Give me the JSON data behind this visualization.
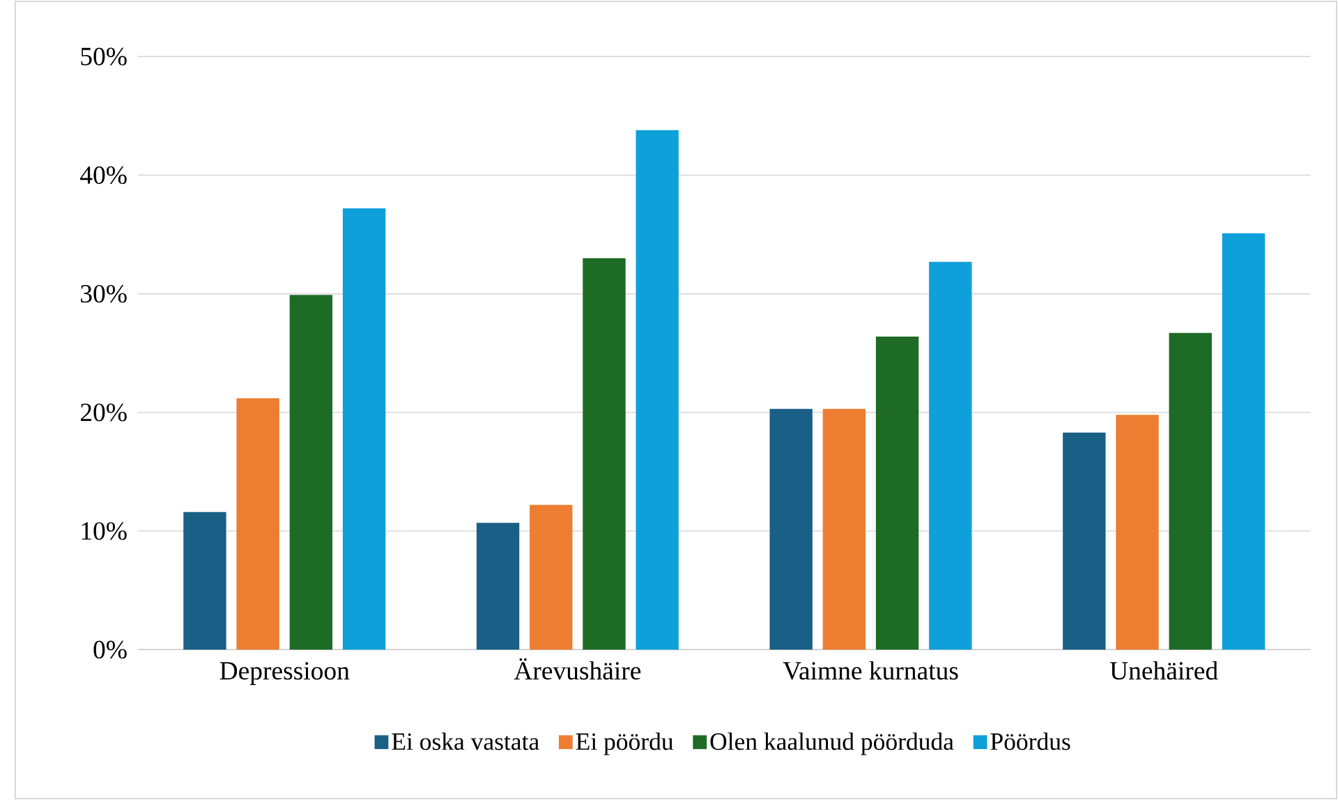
{
  "chart_data": {
    "type": "bar",
    "categories": [
      "Depressioon",
      "Ärevushäire",
      "Vaimne kurnatus",
      "Unehäired"
    ],
    "series": [
      {
        "name": "Ei oska vastata",
        "color": "#1a5f85",
        "values": [
          11.6,
          10.7,
          20.3,
          18.3
        ]
      },
      {
        "name": "Ei pöördu",
        "color": "#ed7d31",
        "values": [
          21.2,
          12.2,
          20.3,
          19.8
        ]
      },
      {
        "name": "Olen kaalunud pöörduda",
        "color": "#1e6b25",
        "values": [
          29.9,
          33.0,
          26.4,
          26.7
        ]
      },
      {
        "name": "Pöördus",
        "color": "#0ea0d8",
        "values": [
          37.2,
          43.8,
          32.7,
          35.1
        ]
      }
    ],
    "ylim": [
      0,
      50
    ],
    "yticks": [
      {
        "value": 0,
        "label": "0%"
      },
      {
        "value": 10,
        "label": "10%"
      },
      {
        "value": 20,
        "label": "20%"
      },
      {
        "value": 30,
        "label": "30%"
      },
      {
        "value": 40,
        "label": "40%"
      },
      {
        "value": 50,
        "label": "50%"
      }
    ],
    "grid": "y",
    "legend": "bottom"
  }
}
